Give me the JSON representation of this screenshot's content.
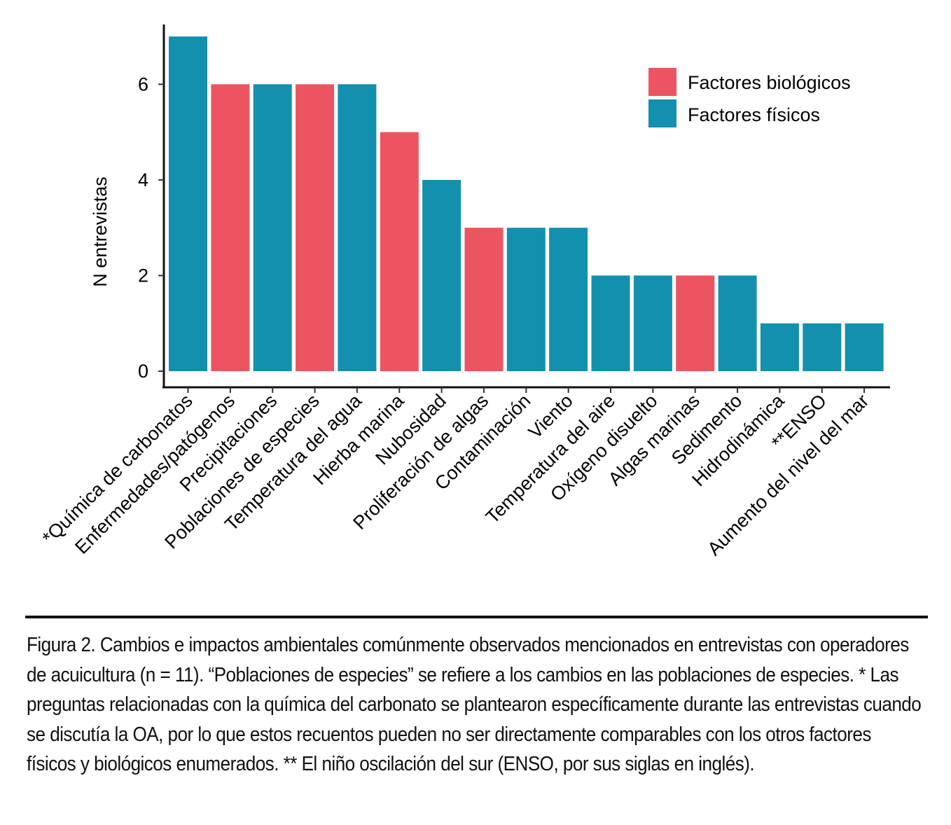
{
  "chart_data": {
    "type": "bar",
    "ylabel": "N entrevistas",
    "xlabel": "",
    "ylim": [
      0,
      7.25
    ],
    "yticks": [
      0,
      2,
      4,
      6
    ],
    "categories": [
      "*Química de carbonatos",
      "Enfermedades/patógenos",
      "Precipitaciones",
      "Poblaciones de especies",
      "Temperatura del agua",
      "Hierba marina",
      "Nubosidad",
      "Proliferación de algas",
      "Contaminación",
      "Viento",
      "Temperatura del aire",
      "Oxígeno disuelto",
      "Algas marinas",
      "Sedimento",
      "Hidrodinámica",
      "**ENSO",
      "Aumento del nivel del mar"
    ],
    "values": [
      7,
      6,
      6,
      6,
      6,
      5,
      4,
      3,
      3,
      3,
      2,
      2,
      2,
      2,
      1,
      1,
      1
    ],
    "groups": [
      "Factores físicos",
      "Factores biológicos",
      "Factores físicos",
      "Factores biológicos",
      "Factores físicos",
      "Factores biológicos",
      "Factores físicos",
      "Factores biológicos",
      "Factores físicos",
      "Factores físicos",
      "Factores físicos",
      "Factores físicos",
      "Factores biológicos",
      "Factores físicos",
      "Factores físicos",
      "Factores físicos",
      "Factores físicos"
    ],
    "legend": [
      {
        "name": "Factores biológicos",
        "color": "#ec5462"
      },
      {
        "name": "Factores físicos",
        "color": "#1390ad"
      }
    ],
    "legend_position": "top-right"
  },
  "caption": {
    "label": "Figura 2.",
    "text": " Cambios e impactos ambientales comúnmente observados mencionados en entrevistas con operadores de acuicultura (n = 11). “Poblaciones de especies” se refiere a los cambios en las poblaciones de especies. * Las preguntas relacionadas con la química del carbonato se plantearon específicamente durante las entrevistas cuando se discutía la OA, por lo que estos recuentos pueden no ser directamente comparables con los otros factores físicos y biológicos enumerados. ** El niño oscilación del sur (ENSO, por sus siglas en inglés)."
  }
}
